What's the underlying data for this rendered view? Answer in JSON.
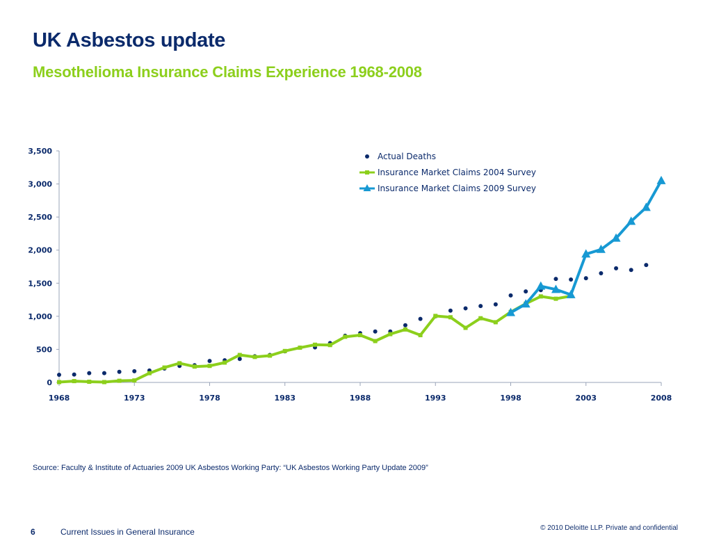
{
  "header": {
    "title": "UK Asbestos update",
    "subtitle": "Mesothelioma Insurance Claims Experience 1968-2008"
  },
  "footer": {
    "source": "Source: Faculty & Institute of Actuaries 2009 UK Asbestos Working Party: “UK Asbestos Working Party Update 2009”",
    "page_number": "6",
    "section": "Current Issues in General Insurance",
    "copyright": "© 2010 Deloitte LLP. Private and confidential"
  },
  "colors": {
    "navy": "#0b2a6b",
    "green": "#8ccf1c",
    "blue": "#1799d3"
  },
  "chart_data": {
    "type": "line",
    "title": "",
    "xlabel": "",
    "ylabel": "",
    "xlim": [
      1968,
      2008
    ],
    "ylim": [
      0,
      3500
    ],
    "x_ticks": [
      "1968",
      "1973",
      "1978",
      "1983",
      "1988",
      "1993",
      "1998",
      "2003",
      "2008"
    ],
    "y_ticks": [
      "0",
      "500",
      "1,000",
      "1,500",
      "2,000",
      "2,500",
      "3,000",
      "3,500"
    ],
    "legend_position": "top-right",
    "grid": false,
    "series": [
      {
        "name": "Actual Deaths",
        "style": "dots",
        "color": "#0b2a6b",
        "x": [
          1968,
          1969,
          1970,
          1971,
          1972,
          1973,
          1974,
          1975,
          1976,
          1977,
          1978,
          1979,
          1980,
          1981,
          1982,
          1983,
          1984,
          1985,
          1986,
          1987,
          1988,
          1989,
          1990,
          1991,
          1992,
          1993,
          1994,
          1995,
          1996,
          1997,
          1998,
          1999,
          2000,
          2001,
          2002,
          2003,
          2004,
          2005,
          2006,
          2007
        ],
        "values": [
          115,
          120,
          140,
          140,
          160,
          170,
          180,
          210,
          250,
          260,
          325,
          335,
          355,
          395,
          415,
          470,
          525,
          530,
          595,
          705,
          745,
          770,
          770,
          865,
          960,
          1000,
          1085,
          1120,
          1155,
          1180,
          1315,
          1375,
          1395,
          1565,
          1555,
          1575,
          1650,
          1725,
          1700,
          1775
        ]
      },
      {
        "name": "Insurance Market Claims 2004 Survey",
        "style": "line-square",
        "color": "#8ccf1c",
        "x": [
          1968,
          1969,
          1970,
          1971,
          1972,
          1973,
          1974,
          1975,
          1976,
          1977,
          1978,
          1979,
          1980,
          1981,
          1982,
          1983,
          1984,
          1985,
          1986,
          1987,
          1988,
          1989,
          1990,
          1991,
          1992,
          1993,
          1994,
          1995,
          1996,
          1997,
          1998,
          1999,
          2000,
          2001,
          2002
        ],
        "values": [
          5,
          20,
          10,
          5,
          25,
          30,
          140,
          225,
          290,
          240,
          250,
          300,
          415,
          385,
          405,
          475,
          525,
          570,
          565,
          690,
          715,
          625,
          730,
          800,
          715,
          1005,
          985,
          825,
          970,
          910,
          1065,
          1190,
          1300,
          1265,
          1305
        ]
      },
      {
        "name": "Insurance Market Claims 2009 Survey",
        "style": "line-triangle",
        "color": "#1799d3",
        "x": [
          1998,
          1999,
          2000,
          2001,
          2002,
          2003,
          2004,
          2005,
          2006,
          2007,
          2008
        ],
        "values": [
          1055,
          1185,
          1455,
          1405,
          1325,
          1940,
          2010,
          2180,
          2435,
          2645,
          3050
        ]
      }
    ]
  }
}
